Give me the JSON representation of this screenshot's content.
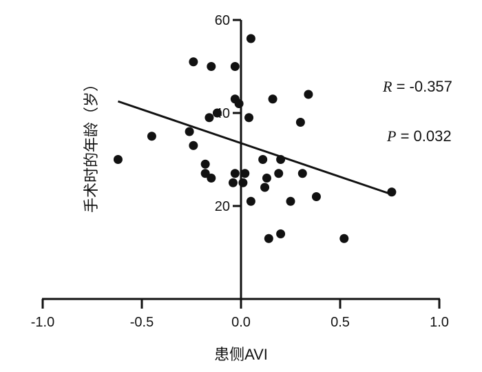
{
  "chart_data": {
    "type": "scatter",
    "xlabel": "患侧AVI",
    "ylabel": "手术时的年龄（岁）",
    "xlim": [
      -1.0,
      1.0
    ],
    "ylim": [
      0,
      60
    ],
    "x_ticks": [
      "-1.0",
      "-0.5",
      "0.0",
      "0.5",
      "1.0"
    ],
    "y_ticks": [
      "20",
      "40",
      "60"
    ],
    "points": [
      {
        "x": 0.05,
        "y": 56
      },
      {
        "x": -0.24,
        "y": 51
      },
      {
        "x": -0.15,
        "y": 50
      },
      {
        "x": -0.03,
        "y": 50
      },
      {
        "x": 0.34,
        "y": 44
      },
      {
        "x": -0.03,
        "y": 43
      },
      {
        "x": 0.16,
        "y": 43
      },
      {
        "x": -0.01,
        "y": 42
      },
      {
        "x": -0.12,
        "y": 40
      },
      {
        "x": -0.16,
        "y": 39
      },
      {
        "x": 0.04,
        "y": 39
      },
      {
        "x": 0.3,
        "y": 38
      },
      {
        "x": -0.45,
        "y": 35
      },
      {
        "x": -0.26,
        "y": 36
      },
      {
        "x": -0.24,
        "y": 33
      },
      {
        "x": -0.62,
        "y": 30
      },
      {
        "x": 0.11,
        "y": 30
      },
      {
        "x": 0.2,
        "y": 30
      },
      {
        "x": -0.18,
        "y": 29
      },
      {
        "x": -0.18,
        "y": 27
      },
      {
        "x": -0.15,
        "y": 26
      },
      {
        "x": -0.03,
        "y": 27
      },
      {
        "x": 0.02,
        "y": 27
      },
      {
        "x": 0.19,
        "y": 27
      },
      {
        "x": 0.31,
        "y": 27
      },
      {
        "x": -0.04,
        "y": 25
      },
      {
        "x": 0.01,
        "y": 25
      },
      {
        "x": 0.13,
        "y": 26
      },
      {
        "x": 0.12,
        "y": 24
      },
      {
        "x": 0.38,
        "y": 22
      },
      {
        "x": 0.05,
        "y": 21
      },
      {
        "x": 0.25,
        "y": 21
      },
      {
        "x": 0.76,
        "y": 23
      },
      {
        "x": 0.14,
        "y": 13
      },
      {
        "x": 0.2,
        "y": 14
      },
      {
        "x": 0.52,
        "y": 13
      }
    ],
    "fit_line": {
      "x": [
        -0.62,
        0.76
      ],
      "y": [
        42.5,
        22.5
      ]
    },
    "annotations": {
      "r_label": "R",
      "r_value": " = -0.357",
      "p_label": "P",
      "p_value": " = 0.032"
    },
    "grid": false,
    "colors": {
      "points": "#111111",
      "line": "#111111",
      "axes": "#111111"
    }
  }
}
